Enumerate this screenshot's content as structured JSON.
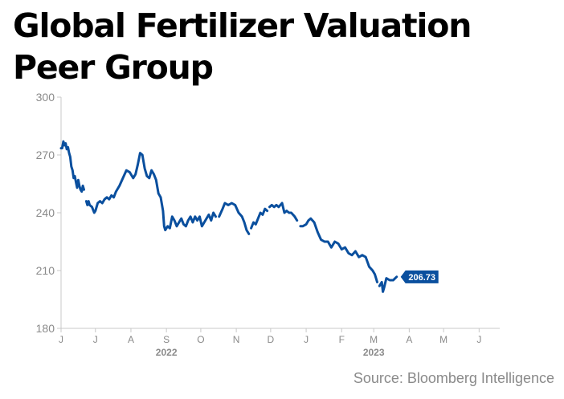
{
  "page": {
    "source": "Source: Bloomberg Intelligence"
  },
  "colors": {
    "line": "#0a4f9e",
    "axis": "#c8c8c8",
    "text": "#8a8a8a"
  },
  "chart_data": {
    "type": "line",
    "title": "Global Fertilizer Valuation Peer Group",
    "xlabel": "",
    "ylabel": "",
    "ylim": [
      180,
      300
    ],
    "yticks": [
      300,
      270,
      240,
      210,
      180
    ],
    "xlim": [
      "2022-06-01",
      "2023-06-19"
    ],
    "xticks": [
      {
        "label": "J",
        "date": "2022-06-01"
      },
      {
        "label": "J",
        "date": "2022-07-01"
      },
      {
        "label": "A",
        "date": "2022-08-01"
      },
      {
        "label": "S",
        "date": "2022-09-01"
      },
      {
        "label": "O",
        "date": "2022-10-01"
      },
      {
        "label": "N",
        "date": "2022-11-01"
      },
      {
        "label": "D",
        "date": "2022-12-01"
      },
      {
        "label": "J",
        "date": "2023-01-01"
      },
      {
        "label": "F",
        "date": "2023-02-01"
      },
      {
        "label": "M",
        "date": "2023-03-01"
      },
      {
        "label": "A",
        "date": "2023-04-01"
      },
      {
        "label": "M",
        "date": "2023-05-01"
      },
      {
        "label": "J",
        "date": "2023-06-01"
      }
    ],
    "year_labels": [
      {
        "label": "2022",
        "date": "2022-09-01"
      },
      {
        "label": "2023",
        "date": "2023-03-01"
      }
    ],
    "last_value_label": "206.73",
    "series": [
      {
        "segments": [
          [
            [
              "2022-06-01",
              273.5
            ],
            [
              "2022-06-02",
              273.5
            ],
            [
              "2022-06-03",
              277
            ],
            [
              "2022-06-04",
              275
            ],
            [
              "2022-06-05",
              276
            ],
            [
              "2022-06-06",
              273
            ],
            [
              "2022-06-07",
              274
            ],
            [
              "2022-06-08",
              271
            ],
            [
              "2022-06-09",
              269
            ],
            [
              "2022-06-10",
              264
            ],
            [
              "2022-06-11",
              262
            ],
            [
              "2022-06-12",
              258
            ],
            [
              "2022-06-13",
              259
            ],
            [
              "2022-06-14",
              256
            ],
            [
              "2022-06-15",
              253
            ],
            [
              "2022-06-16",
              257
            ],
            [
              "2022-06-17",
              254
            ],
            [
              "2022-06-18",
              252
            ],
            [
              "2022-06-19",
              251
            ],
            [
              "2022-06-20",
              254
            ],
            [
              "2022-06-21",
              252
            ]
          ],
          [
            [
              "2022-06-23",
              246
            ],
            [
              "2022-06-24",
              244
            ],
            [
              "2022-06-25",
              246
            ],
            [
              "2022-06-26",
              244
            ],
            [
              "2022-06-28",
              243
            ],
            [
              "2022-06-30",
              240
            ],
            [
              "2022-07-01",
              241
            ],
            [
              "2022-07-03",
              245
            ],
            [
              "2022-07-05",
              246
            ],
            [
              "2022-07-07",
              245
            ],
            [
              "2022-07-09",
              247
            ],
            [
              "2022-07-11",
              248
            ],
            [
              "2022-07-13",
              247
            ],
            [
              "2022-07-15",
              249
            ],
            [
              "2022-07-17",
              248
            ],
            [
              "2022-07-19",
              251
            ],
            [
              "2022-07-22",
              254
            ],
            [
              "2022-07-25",
              258
            ],
            [
              "2022-07-28",
              262
            ],
            [
              "2022-07-31",
              261
            ],
            [
              "2022-08-03",
              258
            ],
            [
              "2022-08-05",
              260
            ],
            [
              "2022-08-07",
              265
            ],
            [
              "2022-08-09",
              271
            ],
            [
              "2022-08-11",
              270
            ],
            [
              "2022-08-13",
              263
            ],
            [
              "2022-08-15",
              259
            ],
            [
              "2022-08-17",
              258
            ],
            [
              "2022-08-19",
              262
            ],
            [
              "2022-08-21",
              260
            ],
            [
              "2022-08-23",
              257
            ],
            [
              "2022-08-25",
              250
            ],
            [
              "2022-08-27",
              248
            ],
            [
              "2022-08-29",
              241
            ],
            [
              "2022-08-30",
              233
            ],
            [
              "2022-08-31",
              231
            ],
            [
              "2022-09-02",
              233
            ],
            [
              "2022-09-04",
              232
            ],
            [
              "2022-09-06",
              238
            ],
            [
              "2022-09-08",
              236
            ],
            [
              "2022-09-10",
              233
            ],
            [
              "2022-09-12",
              235
            ],
            [
              "2022-09-14",
              237
            ],
            [
              "2022-09-16",
              234
            ],
            [
              "2022-09-18",
              233
            ],
            [
              "2022-09-20",
              236
            ],
            [
              "2022-09-22",
              238
            ],
            [
              "2022-09-24",
              235
            ],
            [
              "2022-09-26",
              238
            ],
            [
              "2022-09-28",
              236
            ],
            [
              "2022-09-30",
              238
            ],
            [
              "2022-10-02",
              233
            ],
            [
              "2022-10-04",
              235
            ],
            [
              "2022-10-06",
              237
            ],
            [
              "2022-10-08",
              239
            ],
            [
              "2022-10-10",
              236
            ],
            [
              "2022-10-12",
              240
            ],
            [
              "2022-10-14",
              238
            ]
          ],
          [
            [
              "2022-10-17",
              238
            ],
            [
              "2022-10-20",
              242
            ],
            [
              "2022-10-22",
              245
            ],
            [
              "2022-10-25",
              244
            ],
            [
              "2022-10-28",
              245
            ],
            [
              "2022-10-31",
              244
            ],
            [
              "2022-11-03",
              240
            ],
            [
              "2022-11-06",
              238
            ],
            [
              "2022-11-08",
              235
            ],
            [
              "2022-11-10",
              231
            ],
            [
              "2022-11-12",
              229
            ]
          ],
          [
            [
              "2022-11-14",
              232
            ],
            [
              "2022-11-16",
              235
            ],
            [
              "2022-11-18",
              234
            ],
            [
              "2022-11-20",
              237
            ],
            [
              "2022-11-22",
              240
            ],
            [
              "2022-11-24",
              239
            ],
            [
              "2022-11-26",
              242
            ],
            [
              "2022-11-28",
              241
            ]
          ],
          [
            [
              "2022-11-30",
              243
            ],
            [
              "2022-12-02",
              244
            ],
            [
              "2022-12-04",
              243
            ],
            [
              "2022-12-06",
              244
            ],
            [
              "2022-12-08",
              243
            ],
            [
              "2022-12-11",
              245
            ],
            [
              "2022-12-13",
              240
            ],
            [
              "2022-12-15",
              241
            ],
            [
              "2022-12-17",
              240
            ],
            [
              "2022-12-19",
              240
            ],
            [
              "2022-12-22",
              238
            ],
            [
              "2022-12-24",
              236
            ]
          ],
          [
            [
              "2022-12-27",
              233
            ],
            [
              "2022-12-29",
              233
            ],
            [
              "2023-01-01",
              234
            ],
            [
              "2023-01-03",
              236
            ],
            [
              "2023-01-05",
              237
            ],
            [
              "2023-01-08",
              235
            ],
            [
              "2023-01-11",
              230
            ],
            [
              "2023-01-14",
              226
            ],
            [
              "2023-01-17",
              225
            ],
            [
              "2023-01-20",
              225
            ],
            [
              "2023-01-23",
              222
            ],
            [
              "2023-01-26",
              225
            ],
            [
              "2023-01-29",
              224
            ],
            [
              "2023-02-01",
              221
            ],
            [
              "2023-02-04",
              222
            ],
            [
              "2023-02-07",
              219
            ],
            [
              "2023-02-10",
              218
            ],
            [
              "2023-02-13",
              220
            ],
            [
              "2023-02-16",
              217
            ],
            [
              "2023-02-19",
              218
            ],
            [
              "2023-02-22",
              217
            ],
            [
              "2023-02-25",
              212
            ],
            [
              "2023-02-28",
              210
            ],
            [
              "2023-03-02",
              208
            ],
            [
              "2023-03-04",
              204
            ]
          ],
          [
            [
              "2023-03-06",
              202
            ],
            [
              "2023-03-08",
              204
            ],
            [
              "2023-03-09",
              199
            ],
            [
              "2023-03-10",
              201
            ],
            [
              "2023-03-12",
              206
            ],
            [
              "2023-03-15",
              205
            ],
            [
              "2023-03-18",
              205
            ],
            [
              "2023-03-21",
              206.73
            ]
          ]
        ]
      }
    ]
  }
}
